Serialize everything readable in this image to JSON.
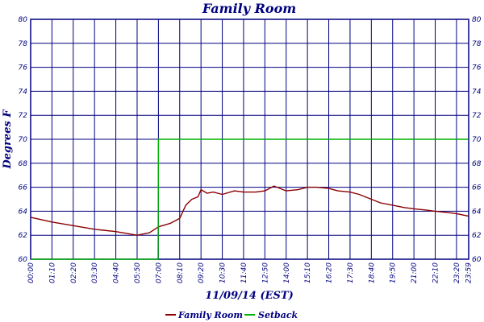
{
  "chart_data": {
    "type": "line",
    "title": "Family Room",
    "xlabel": "11/09/14 (EST)",
    "ylabel": "Degrees F",
    "ylim": [
      60,
      80
    ],
    "yticks": [
      "60",
      "62",
      "64",
      "66",
      "68",
      "70",
      "72",
      "74",
      "76",
      "78",
      "80"
    ],
    "xlim_minutes": [
      0,
      1440
    ],
    "xticks": [
      "00:00",
      "01:10",
      "02:20",
      "03:30",
      "04:40",
      "05:50",
      "07:00",
      "08:10",
      "09:20",
      "10:30",
      "11:40",
      "12:50",
      "14:00",
      "15:10",
      "16:20",
      "17:30",
      "18:40",
      "19:50",
      "21:00",
      "22:10",
      "23:20",
      "23:59"
    ],
    "grid": true,
    "legend_position": "bottom-center",
    "series": [
      {
        "name": "Family Room",
        "color": "#8b0000",
        "x": [
          "00:00",
          "01:10",
          "02:20",
          "03:30",
          "04:40",
          "05:50",
          "06:30",
          "07:00",
          "07:40",
          "08:10",
          "08:30",
          "08:50",
          "09:10",
          "09:20",
          "09:40",
          "10:00",
          "10:30",
          "11:10",
          "11:40",
          "12:20",
          "12:50",
          "13:20",
          "14:00",
          "14:40",
          "15:10",
          "15:40",
          "16:20",
          "16:50",
          "17:30",
          "18:00",
          "18:40",
          "19:10",
          "19:50",
          "20:30",
          "21:00",
          "21:40",
          "22:10",
          "22:50",
          "23:20",
          "23:59"
        ],
        "y": [
          63.5,
          63.1,
          62.8,
          62.5,
          62.3,
          62.0,
          62.2,
          62.7,
          63.0,
          63.4,
          64.5,
          65.0,
          65.2,
          65.8,
          65.5,
          65.6,
          65.4,
          65.7,
          65.6,
          65.6,
          65.7,
          66.1,
          65.7,
          65.8,
          66.0,
          66.0,
          65.9,
          65.7,
          65.6,
          65.4,
          65.0,
          64.7,
          64.5,
          64.3,
          64.2,
          64.1,
          64.0,
          63.9,
          63.8,
          63.6
        ]
      },
      {
        "name": "Setback",
        "color": "#00b000",
        "x": [
          "00:00",
          "06:59",
          "07:00",
          "23:59"
        ],
        "y": [
          60,
          60,
          70,
          70
        ]
      }
    ]
  }
}
